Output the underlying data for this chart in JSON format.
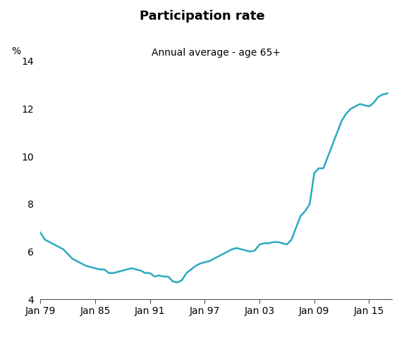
{
  "title": "Participation rate",
  "subtitle": "Annual average - age 65+",
  "ylabel": "%",
  "line_color": "#2aaabf",
  "line_width": 1.8,
  "background_color": "#ffffff",
  "xlim_start": 1979.0,
  "xlim_end": 2017.5,
  "ylim": [
    4,
    14
  ],
  "yticks": [
    4,
    6,
    8,
    10,
    12,
    14
  ],
  "xtick_labels": [
    "Jan 79",
    "Jan 85",
    "Jan 91",
    "Jan 97",
    "Jan 03",
    "Jan 09",
    "Jan 15"
  ],
  "xtick_positions": [
    1979,
    1985,
    1991,
    1997,
    2003,
    2009,
    2015
  ],
  "data": [
    [
      1979.0,
      6.8
    ],
    [
      1979.5,
      6.5
    ],
    [
      1980.0,
      6.4
    ],
    [
      1980.5,
      6.3
    ],
    [
      1981.0,
      6.2
    ],
    [
      1981.5,
      6.1
    ],
    [
      1982.0,
      5.9
    ],
    [
      1982.5,
      5.7
    ],
    [
      1983.0,
      5.6
    ],
    [
      1983.5,
      5.5
    ],
    [
      1984.0,
      5.4
    ],
    [
      1984.5,
      5.35
    ],
    [
      1985.0,
      5.3
    ],
    [
      1985.5,
      5.25
    ],
    [
      1986.0,
      5.25
    ],
    [
      1986.5,
      5.1
    ],
    [
      1987.0,
      5.1
    ],
    [
      1987.5,
      5.15
    ],
    [
      1988.0,
      5.2
    ],
    [
      1988.5,
      5.25
    ],
    [
      1989.0,
      5.3
    ],
    [
      1989.5,
      5.25
    ],
    [
      1990.0,
      5.2
    ],
    [
      1990.5,
      5.1
    ],
    [
      1991.0,
      5.1
    ],
    [
      1991.5,
      4.95
    ],
    [
      1992.0,
      5.0
    ],
    [
      1992.5,
      4.95
    ],
    [
      1993.0,
      4.95
    ],
    [
      1993.5,
      4.75
    ],
    [
      1994.0,
      4.7
    ],
    [
      1994.5,
      4.8
    ],
    [
      1995.0,
      5.1
    ],
    [
      1995.5,
      5.25
    ],
    [
      1996.0,
      5.4
    ],
    [
      1996.5,
      5.5
    ],
    [
      1997.0,
      5.55
    ],
    [
      1997.5,
      5.6
    ],
    [
      1998.0,
      5.7
    ],
    [
      1998.5,
      5.8
    ],
    [
      1999.0,
      5.9
    ],
    [
      1999.5,
      6.0
    ],
    [
      2000.0,
      6.1
    ],
    [
      2000.5,
      6.15
    ],
    [
      2001.0,
      6.1
    ],
    [
      2001.5,
      6.05
    ],
    [
      2002.0,
      6.0
    ],
    [
      2002.5,
      6.05
    ],
    [
      2003.0,
      6.3
    ],
    [
      2003.5,
      6.35
    ],
    [
      2004.0,
      6.35
    ],
    [
      2004.5,
      6.4
    ],
    [
      2005.0,
      6.4
    ],
    [
      2005.5,
      6.35
    ],
    [
      2006.0,
      6.3
    ],
    [
      2006.5,
      6.5
    ],
    [
      2007.0,
      7.0
    ],
    [
      2007.5,
      7.5
    ],
    [
      2008.0,
      7.7
    ],
    [
      2008.5,
      8.0
    ],
    [
      2009.0,
      9.3
    ],
    [
      2009.5,
      9.5
    ],
    [
      2010.0,
      9.5
    ],
    [
      2010.5,
      10.0
    ],
    [
      2011.0,
      10.5
    ],
    [
      2011.5,
      11.0
    ],
    [
      2012.0,
      11.5
    ],
    [
      2012.5,
      11.8
    ],
    [
      2013.0,
      12.0
    ],
    [
      2013.5,
      12.1
    ],
    [
      2014.0,
      12.2
    ],
    [
      2014.5,
      12.15
    ],
    [
      2015.0,
      12.1
    ],
    [
      2015.5,
      12.25
    ],
    [
      2016.0,
      12.5
    ],
    [
      2016.5,
      12.6
    ],
    [
      2017.0,
      12.65
    ]
  ]
}
